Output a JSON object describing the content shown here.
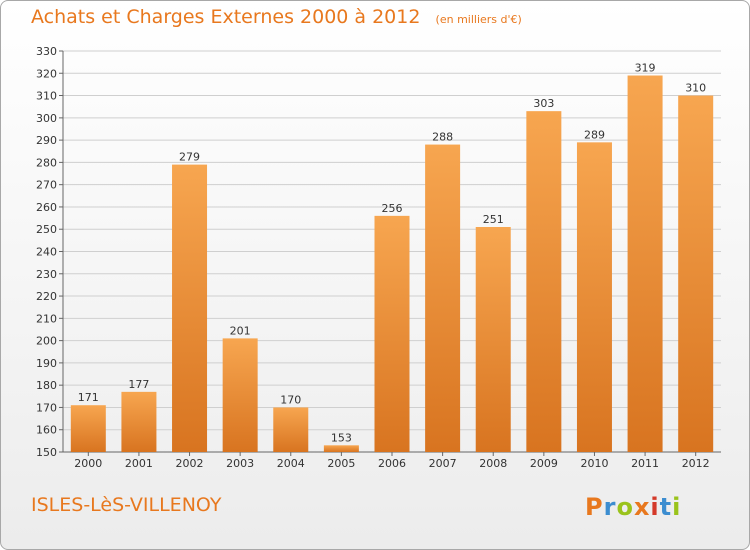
{
  "header": {
    "title": "Achats et Charges Externes 2000 à 2012",
    "unit_note": "(en milliers d'€)"
  },
  "footer": {
    "location": "ISLES-LèS-VILLENOY",
    "logo_text": "Proxiti",
    "logo_colors": [
      "#e8781e",
      "#3c8dd0",
      "#9ac31c",
      "#e8781e",
      "#d43a2a",
      "#3c8dd0",
      "#9ac31c"
    ]
  },
  "colors": {
    "bar_top": "#f7a650",
    "bar_bottom": "#d87420",
    "grid": "#cfcfcf",
    "accent": "#e8781e"
  },
  "chart_data": {
    "type": "bar",
    "categories": [
      "2000",
      "2001",
      "2002",
      "2003",
      "2004",
      "2005",
      "2006",
      "2007",
      "2008",
      "2009",
      "2010",
      "2011",
      "2012"
    ],
    "values": [
      171,
      177,
      279,
      201,
      170,
      153,
      256,
      288,
      251,
      303,
      289,
      319,
      310
    ],
    "title": "Achats et Charges Externes 2000 à 2012",
    "ylim": [
      150,
      330
    ],
    "y_ticks": [
      150,
      160,
      170,
      180,
      190,
      200,
      210,
      220,
      230,
      240,
      250,
      260,
      270,
      280,
      290,
      300,
      310,
      320,
      330
    ],
    "grid": true,
    "data_labels": true
  }
}
